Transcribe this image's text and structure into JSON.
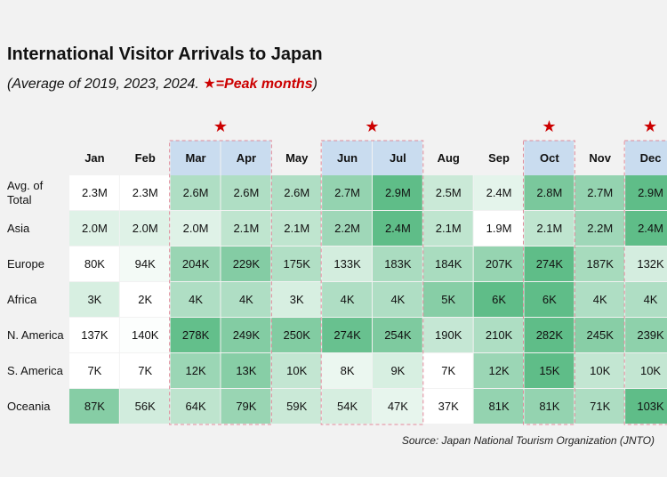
{
  "title": "International Visitor Arrivals to Japan",
  "subtitle_prefix": "(Average of 2019, 2023, 2024. ",
  "subtitle_star": "★",
  "subtitle_peak": "=Peak months",
  "subtitle_suffix": ")",
  "source": "Source: Japan National Tourism Organization (JNTO)",
  "chart_data": {
    "type": "heatmap",
    "title": "International Visitor Arrivals to Japan",
    "subtitle": "(Average of 2019, 2023, 2024. ★=Peak months)",
    "columns": [
      "Jan",
      "Feb",
      "Mar",
      "Apr",
      "May",
      "Jun",
      "Jul",
      "Aug",
      "Sep",
      "Oct",
      "Nov",
      "Dec"
    ],
    "peak_months": [
      "Mar",
      "Apr",
      "Jun",
      "Jul",
      "Oct",
      "Dec"
    ],
    "rows": [
      "Avg. of Total",
      "Asia",
      "Europe",
      "Africa",
      "N. America",
      "S. America",
      "Oceania"
    ],
    "labels": [
      [
        "2.3M",
        "2.3M",
        "2.6M",
        "2.6M",
        "2.6M",
        "2.7M",
        "2.9M",
        "2.5M",
        "2.4M",
        "2.8M",
        "2.7M",
        "2.9M"
      ],
      [
        "2.0M",
        "2.0M",
        "2.0M",
        "2.1M",
        "2.1M",
        "2.2M",
        "2.4M",
        "2.1M",
        "1.9M",
        "2.1M",
        "2.2M",
        "2.4M"
      ],
      [
        "80K",
        "94K",
        "204K",
        "229K",
        "175K",
        "133K",
        "183K",
        "184K",
        "207K",
        "274K",
        "187K",
        "132K"
      ],
      [
        "3K",
        "2K",
        "4K",
        "4K",
        "3K",
        "4K",
        "4K",
        "5K",
        "6K",
        "6K",
        "4K",
        "4K"
      ],
      [
        "137K",
        "140K",
        "278K",
        "249K",
        "250K",
        "274K",
        "254K",
        "190K",
        "210K",
        "282K",
        "245K",
        "239K"
      ],
      [
        "7K",
        "7K",
        "12K",
        "13K",
        "10K",
        "8K",
        "9K",
        "7K",
        "12K",
        "15K",
        "10K",
        "10K"
      ],
      [
        "87K",
        "56K",
        "64K",
        "79K",
        "59K",
        "54K",
        "47K",
        "37K",
        "81K",
        "81K",
        "71K",
        "103K"
      ]
    ],
    "values": [
      [
        2300000,
        2300000,
        2600000,
        2600000,
        2600000,
        2700000,
        2900000,
        2500000,
        2400000,
        2800000,
        2700000,
        2900000
      ],
      [
        2000000,
        2000000,
        2000000,
        2100000,
        2100000,
        2200000,
        2400000,
        2100000,
        1900000,
        2100000,
        2200000,
        2400000
      ],
      [
        80000,
        94000,
        204000,
        229000,
        175000,
        133000,
        183000,
        184000,
        207000,
        274000,
        187000,
        132000
      ],
      [
        3000,
        2000,
        4000,
        4000,
        3000,
        4000,
        4000,
        5000,
        6000,
        6000,
        4000,
        4000
      ],
      [
        137000,
        140000,
        278000,
        249000,
        250000,
        274000,
        254000,
        190000,
        210000,
        282000,
        245000,
        239000
      ],
      [
        7000,
        7000,
        12000,
        13000,
        10000,
        8000,
        9000,
        7000,
        12000,
        15000,
        10000,
        10000
      ],
      [
        87000,
        56000,
        64000,
        79000,
        59000,
        54000,
        47000,
        37000,
        81000,
        81000,
        71000,
        103000
      ]
    ],
    "color_scale": {
      "low": "#ffffff",
      "high": "#5fbd88"
    },
    "header_highlight": "#c9dcef",
    "peak_border": "#e08a9a",
    "star_color": "#cc0000"
  }
}
